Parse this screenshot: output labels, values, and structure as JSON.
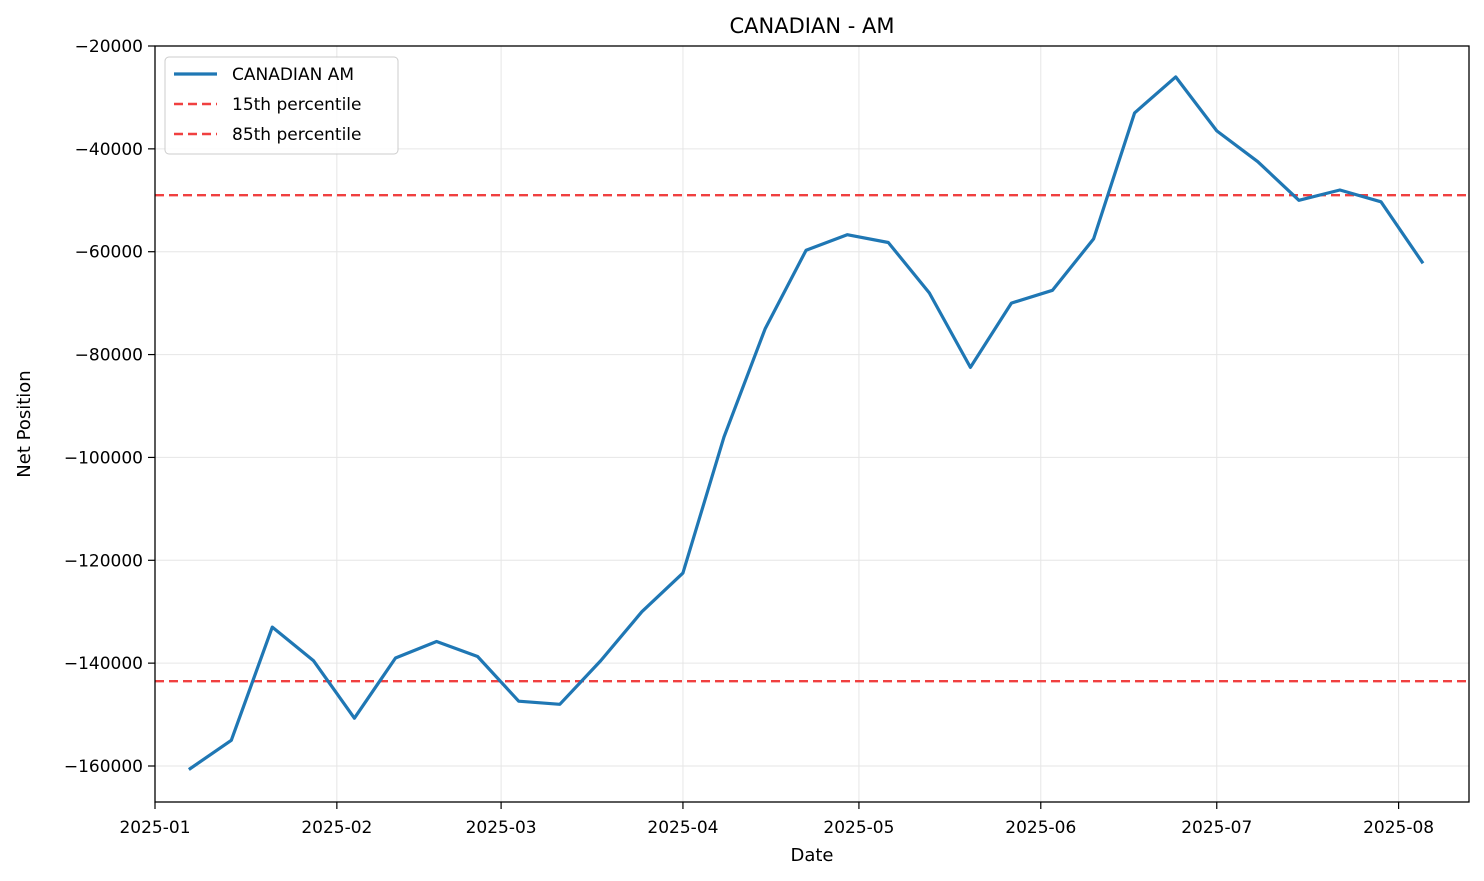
{
  "chart_data": {
    "type": "line",
    "title": "CANADIAN - AM",
    "xlabel": "Date",
    "ylabel": "Net Position",
    "xlim": [
      "2025-01-01",
      "2025-08-13"
    ],
    "ylim": [
      -167000,
      -20000
    ],
    "x_ticks": [
      "2025-01",
      "2025-02",
      "2025-03",
      "2025-04",
      "2025-05",
      "2025-06",
      "2025-07",
      "2025-08"
    ],
    "y_ticks": [
      -20000,
      -40000,
      -60000,
      -80000,
      -100000,
      -120000,
      -140000,
      -160000
    ],
    "grid": true,
    "legend_position": "top-left",
    "series": [
      {
        "name": "CANADIAN AM",
        "color": "#1f77b4",
        "style": "solid",
        "x": [
          "2025-01-07",
          "2025-01-14",
          "2025-01-21",
          "2025-01-28",
          "2025-02-04",
          "2025-02-11",
          "2025-02-18",
          "2025-02-25",
          "2025-03-04",
          "2025-03-11",
          "2025-03-18",
          "2025-03-25",
          "2025-04-01",
          "2025-04-08",
          "2025-04-15",
          "2025-04-22",
          "2025-04-29",
          "2025-05-06",
          "2025-05-13",
          "2025-05-20",
          "2025-05-27",
          "2025-06-03",
          "2025-06-10",
          "2025-06-17",
          "2025-06-24",
          "2025-07-01",
          "2025-07-08",
          "2025-07-15",
          "2025-07-22",
          "2025-07-29",
          "2025-08-05"
        ],
        "y": [
          -160500,
          -155000,
          -133000,
          -139500,
          -150700,
          -139000,
          -135800,
          -138700,
          -147400,
          -148000,
          -139500,
          -130000,
          -122500,
          -96000,
          -75000,
          -59700,
          -56700,
          -58200,
          -68000,
          -82500,
          -70000,
          -67500,
          -57500,
          -33000,
          -26000,
          -36500,
          -42500,
          -50000,
          -48000,
          -50300,
          -62000
        ]
      },
      {
        "name": "15th percentile",
        "color": "#f04040",
        "style": "dashed",
        "y": -143500
      },
      {
        "name": "85th percentile",
        "color": "#f04040",
        "style": "dashed",
        "y": -49000
      }
    ]
  }
}
